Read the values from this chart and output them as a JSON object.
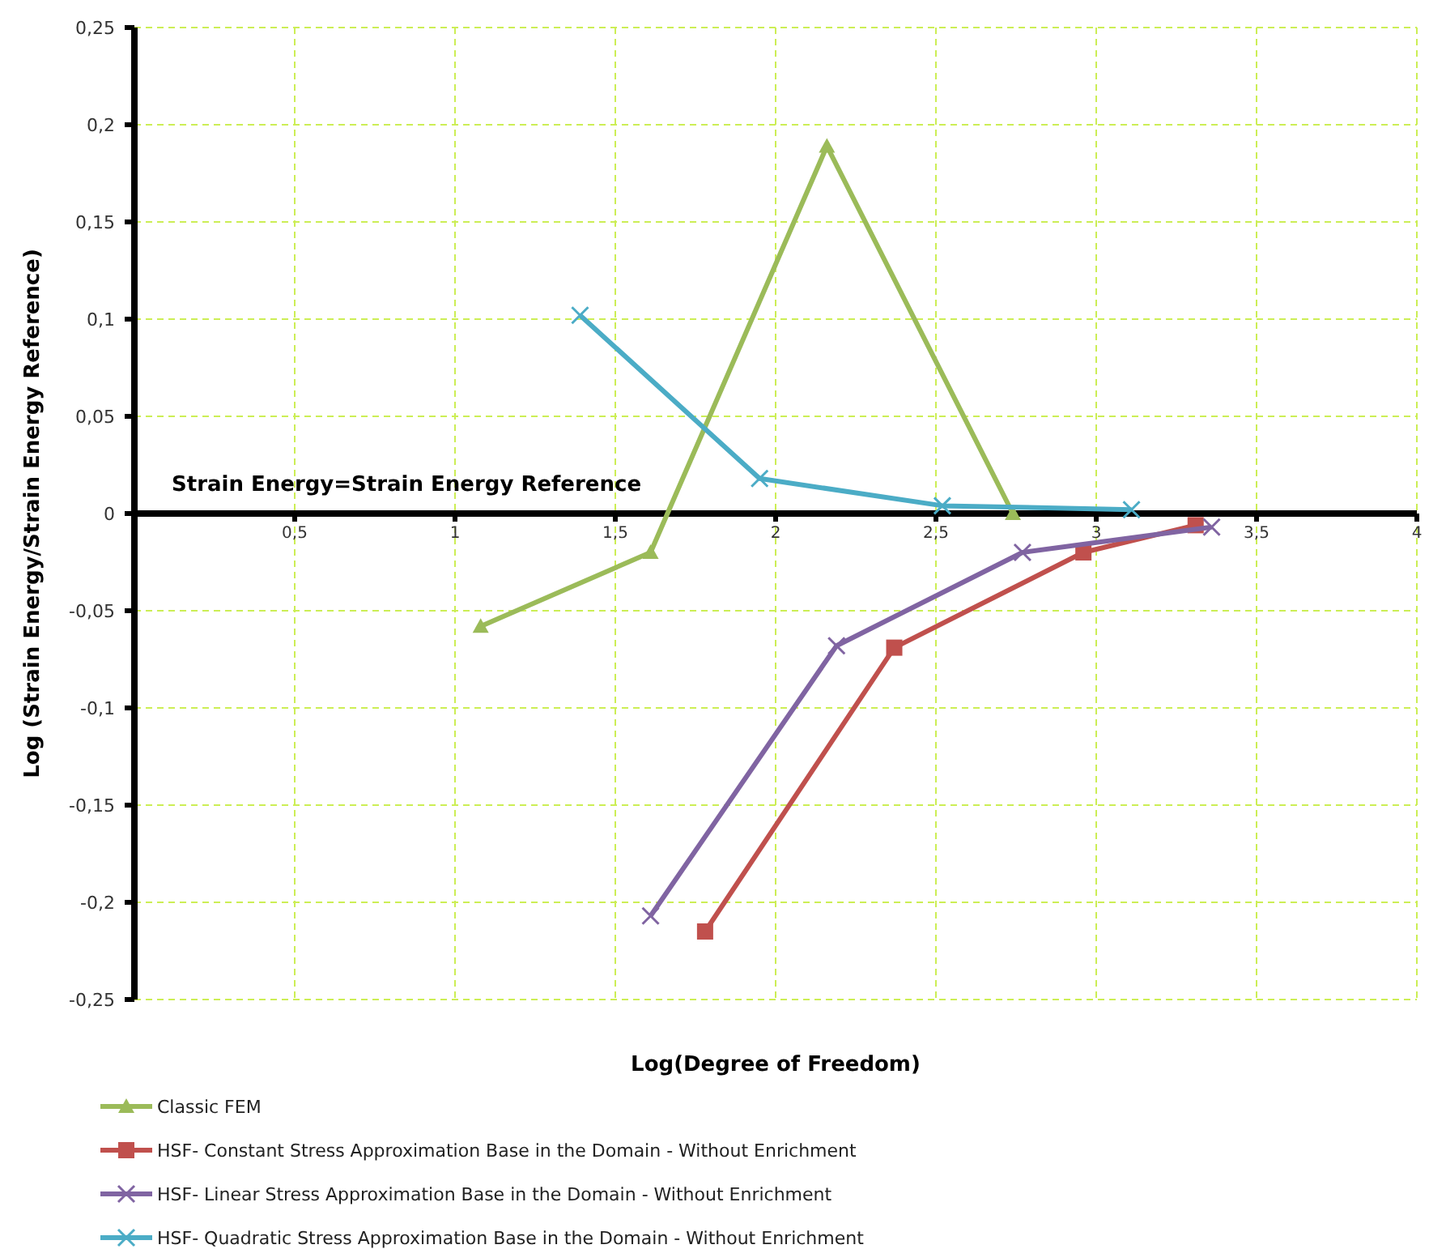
{
  "chart_data": {
    "type": "line",
    "xlabel": "Log(Degree of Freedom)",
    "ylabel": "Log (Strain Energy/Strain Energy Reference)",
    "annotations": [
      "Strain Energy=Strain Energy Reference"
    ],
    "xlim": [
      0,
      4
    ],
    "xticks": [
      {
        "value": 0,
        "label": null
      },
      {
        "value": 0.5,
        "label": "0,5"
      },
      1,
      {
        "value": 1.5,
        "label": "1,5"
      },
      2,
      {
        "value": 2.5,
        "label": "2,5"
      },
      3,
      {
        "value": 3.5,
        "label": "3,5"
      },
      4
    ],
    "ylim": [
      -0.25,
      0.25
    ],
    "yticks": [
      {
        "value": -0.25,
        "label": "-0,25"
      },
      {
        "value": -0.2,
        "label": "-0,2"
      },
      {
        "value": -0.15,
        "label": "-0,15"
      },
      {
        "value": -0.1,
        "label": "-0,1"
      },
      {
        "value": -0.05,
        "label": "-0,05"
      },
      0,
      {
        "value": 0.05,
        "label": "0,05"
      },
      {
        "value": 0.1,
        "label": "0,1"
      },
      {
        "value": 0.15,
        "label": "0,15"
      },
      {
        "value": 0.2,
        "label": "0,2"
      },
      {
        "value": 0.25,
        "label": "0,25"
      }
    ],
    "grid": true,
    "legend": "bottom",
    "line_style": "solid",
    "series": [
      {
        "name": "Classic FEM",
        "color": "#9bbb59",
        "marker": "triangle",
        "x": [
          1.08,
          1.61,
          2.16,
          2.74
        ],
        "values": [
          -0.058,
          -0.02,
          0.189,
          0
        ]
      },
      {
        "name": "HSF- Constant Stress Approximation Base in the Domain  - Without Enrichment",
        "color": "#c0504d",
        "marker": "square",
        "x": [
          1.78,
          2.37,
          2.96,
          3.31
        ],
        "values": [
          -0.215,
          -0.069,
          -0.02,
          -0.006
        ]
      },
      {
        "name": "HSF- Linear Stress Approximation Base in the Domain  - Without Enrichment",
        "color": "#8064a2",
        "marker": "cross",
        "x": [
          1.61,
          2.19,
          2.77,
          3.36
        ],
        "values": [
          -0.207,
          -0.068,
          -0.02,
          -0.007
        ]
      },
      {
        "name": "HSF- Quadratic Stress Approximation Base in the Domain  - Without Enrichment",
        "color": "#4bacc6",
        "marker": "cross",
        "x": [
          1.39,
          1.95,
          2.52,
          3.11
        ],
        "values": [
          0.102,
          0.018,
          0.004,
          0.002
        ]
      }
    ]
  }
}
